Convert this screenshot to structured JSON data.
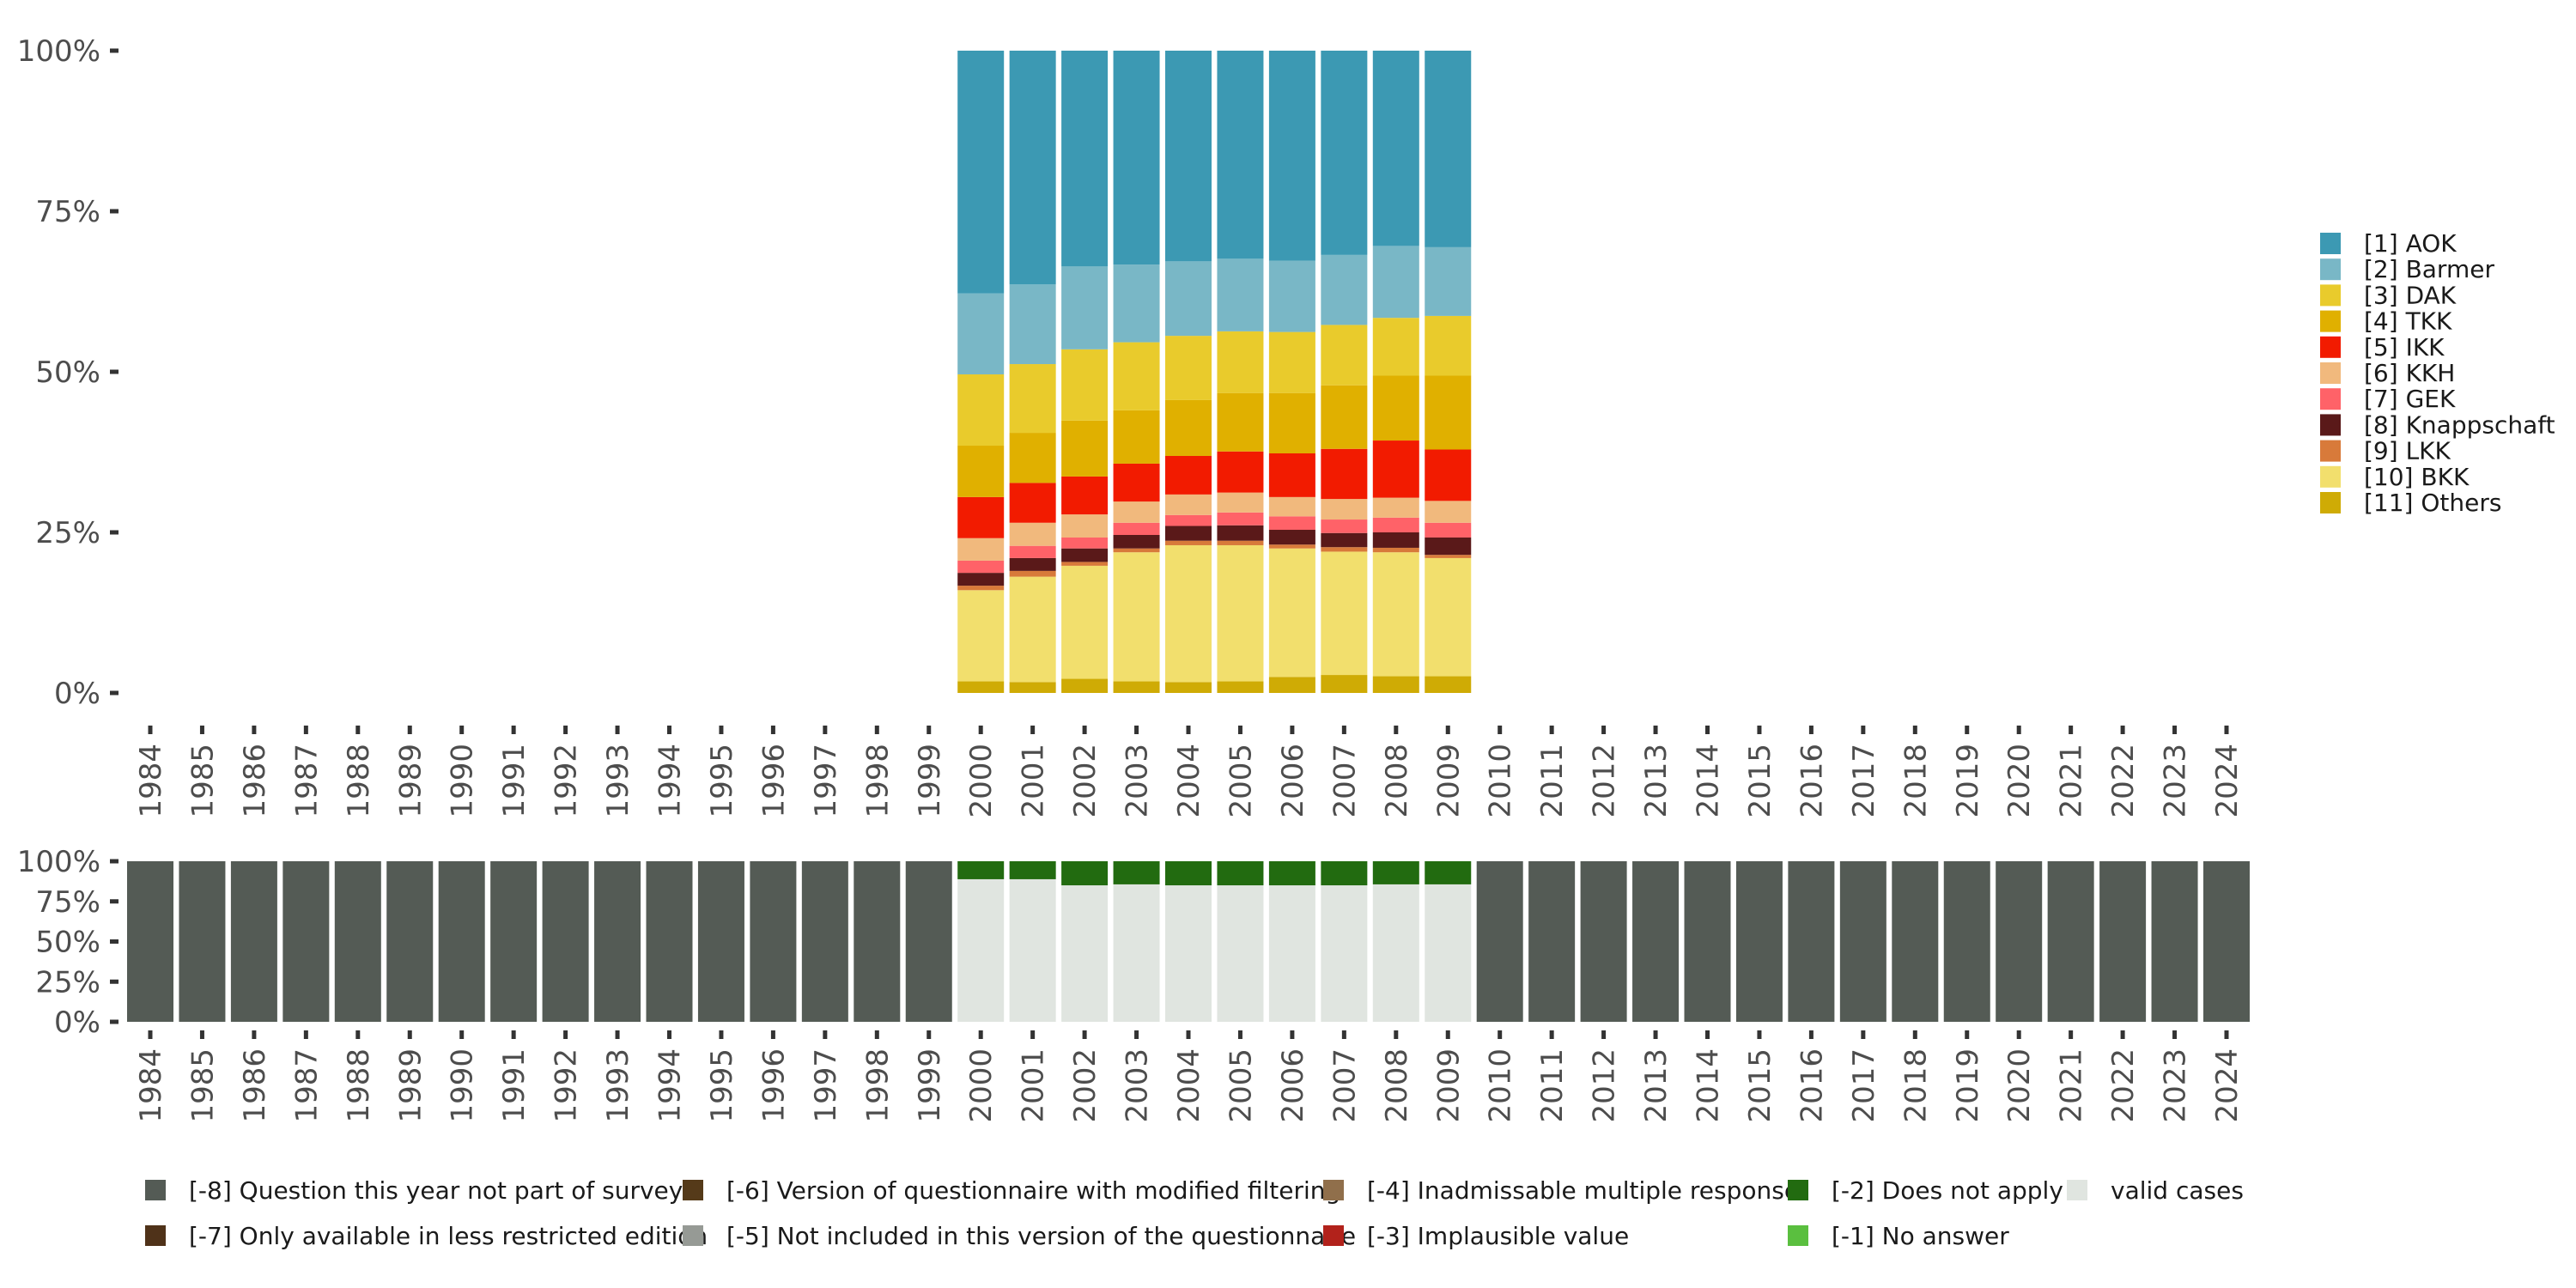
{
  "chart_data": [
    {
      "panel": "distribution",
      "type": "bar",
      "stacked": true,
      "title": "",
      "xlabel": "",
      "ylabel": "",
      "ylim": [
        0,
        100
      ],
      "yticks": [
        "0%",
        "25%",
        "50%",
        "75%",
        "100%"
      ],
      "ytick_values": [
        0,
        25,
        50,
        75,
        100
      ],
      "x_tick_labels": [
        "1984",
        "1985",
        "1986",
        "1987",
        "1988",
        "1989",
        "1990",
        "1991",
        "1992",
        "1993",
        "1994",
        "1995",
        "1996",
        "1997",
        "1998",
        "1999",
        "2000",
        "2001",
        "2002",
        "2003",
        "2004",
        "2005",
        "2006",
        "2007",
        "2008",
        "2009",
        "2010",
        "2011",
        "2012",
        "2013",
        "2014",
        "2015",
        "2016",
        "2017",
        "2018",
        "2019",
        "2020",
        "2021",
        "2022",
        "2023",
        "2024"
      ],
      "categories": [
        "2000",
        "2001",
        "2002",
        "2003",
        "2004",
        "2005",
        "2006",
        "2007",
        "2008",
        "2009"
      ],
      "legend_position": "right",
      "series": [
        {
          "name": "[1] AOK",
          "color": "#3c99b3",
          "values": [
            37.8,
            36.4,
            33.6,
            33.3,
            32.8,
            32.4,
            32.7,
            31.8,
            30.4,
            30.6
          ]
        },
        {
          "name": "[2] Barmer",
          "color": "#79b7c6",
          "values": [
            12.6,
            12.4,
            12.9,
            12.1,
            11.6,
            11.3,
            11.1,
            10.9,
            11.2,
            10.7
          ]
        },
        {
          "name": "[3] DAK",
          "color": "#e9cb2c",
          "values": [
            11.1,
            10.7,
            11.1,
            10.6,
            10.0,
            9.6,
            9.5,
            9.4,
            9.0,
            9.3
          ]
        },
        {
          "name": "[4] TKK",
          "color": "#e0b000",
          "values": [
            8.0,
            7.8,
            8.7,
            8.3,
            8.7,
            9.1,
            9.4,
            9.9,
            10.1,
            11.5
          ]
        },
        {
          "name": "[5] IKK",
          "color": "#f21b00",
          "values": [
            6.4,
            6.2,
            5.9,
            5.9,
            6.0,
            6.4,
            6.8,
            7.8,
            8.9,
            8.0
          ]
        },
        {
          "name": "[6] KKH",
          "color": "#f1b97d",
          "values": [
            3.5,
            3.6,
            3.6,
            3.3,
            3.2,
            3.1,
            3.0,
            3.2,
            3.1,
            3.4
          ]
        },
        {
          "name": "[7] GEK",
          "color": "#ff6268",
          "values": [
            1.9,
            1.9,
            1.7,
            1.9,
            1.7,
            2.0,
            2.1,
            2.1,
            2.3,
            2.3
          ]
        },
        {
          "name": "[8] Knappschaft",
          "color": "#5a1919",
          "values": [
            2.0,
            2.0,
            2.1,
            2.1,
            2.3,
            2.4,
            2.3,
            2.2,
            2.4,
            2.7
          ]
        },
        {
          "name": "[9] LKK",
          "color": "#d87a3a",
          "values": [
            0.7,
            0.9,
            0.6,
            0.6,
            0.7,
            0.7,
            0.6,
            0.7,
            0.7,
            0.5
          ]
        },
        {
          "name": "[10] BKK",
          "color": "#f2df6d",
          "values": [
            14.2,
            16.4,
            17.6,
            20.1,
            21.3,
            21.2,
            20.0,
            19.2,
            19.3,
            18.4
          ]
        },
        {
          "name": "[11] Others",
          "color": "#cfab05",
          "values": [
            1.8,
            1.7,
            2.2,
            1.8,
            1.7,
            1.8,
            2.5,
            2.8,
            2.6,
            2.6
          ]
        }
      ]
    },
    {
      "panel": "missing-values",
      "type": "bar",
      "stacked": true,
      "title": "",
      "xlabel": "",
      "ylabel": "",
      "ylim": [
        0,
        100
      ],
      "yticks": [
        "0%",
        "25%",
        "50%",
        "75%",
        "100%"
      ],
      "ytick_values": [
        0,
        25,
        50,
        75,
        100
      ],
      "categories": [
        "1984",
        "1985",
        "1986",
        "1987",
        "1988",
        "1989",
        "1990",
        "1991",
        "1992",
        "1993",
        "1994",
        "1995",
        "1996",
        "1997",
        "1998",
        "1999",
        "2000",
        "2001",
        "2002",
        "2003",
        "2004",
        "2005",
        "2006",
        "2007",
        "2008",
        "2009",
        "2010",
        "2011",
        "2012",
        "2013",
        "2014",
        "2015",
        "2016",
        "2017",
        "2018",
        "2019",
        "2020",
        "2021",
        "2022",
        "2023",
        "2024"
      ],
      "legend_position": "bottom",
      "legend": [
        {
          "name": "[-8] Question this year not part of survey",
          "color": "#545b55"
        },
        {
          "name": "[-7] Only available in less restricted edition",
          "color": "#4f3219"
        },
        {
          "name": "[-6] Version of questionnaire with modified filtering",
          "color": "#553a19"
        },
        {
          "name": "[-5] Not included in this version of the questionnaire",
          "color": "#969a95"
        },
        {
          "name": "[-4] Inadmissable multiple response",
          "color": "#906f4b"
        },
        {
          "name": "[-3] Implausible value",
          "color": "#b2221b"
        },
        {
          "name": "[-2] Does not apply",
          "color": "#226b10"
        },
        {
          "name": "[-1] No answer",
          "color": "#5abf3f"
        },
        {
          "name": "valid cases",
          "color": "#e0e5e0"
        }
      ],
      "series": [
        {
          "name": "[-8] Question this year not part of survey",
          "color": "#545b55",
          "values": [
            100,
            100,
            100,
            100,
            100,
            100,
            100,
            100,
            100,
            100,
            100,
            100,
            100,
            100,
            100,
            100,
            0,
            0,
            0,
            0,
            0,
            0,
            0,
            0,
            0,
            0,
            100,
            100,
            100,
            100,
            100,
            100,
            100,
            100,
            100,
            100,
            100,
            100,
            100,
            100,
            100
          ]
        },
        {
          "name": "[-2] Does not apply",
          "color": "#226b10",
          "values": [
            0,
            0,
            0,
            0,
            0,
            0,
            0,
            0,
            0,
            0,
            0,
            0,
            0,
            0,
            0,
            0,
            11.2,
            11.2,
            15.0,
            14.4,
            15.0,
            15.0,
            15.0,
            15.0,
            14.4,
            14.4,
            0,
            0,
            0,
            0,
            0,
            0,
            0,
            0,
            0,
            0,
            0,
            0,
            0,
            0,
            0
          ]
        },
        {
          "name": "valid cases",
          "color": "#e0e5e0",
          "values": [
            0,
            0,
            0,
            0,
            0,
            0,
            0,
            0,
            0,
            0,
            0,
            0,
            0,
            0,
            0,
            0,
            88.8,
            88.8,
            85.0,
            85.6,
            85.0,
            85.0,
            85.0,
            85.0,
            85.6,
            85.6,
            0,
            0,
            0,
            0,
            0,
            0,
            0,
            0,
            0,
            0,
            0,
            0,
            0,
            0,
            0
          ]
        }
      ]
    }
  ]
}
